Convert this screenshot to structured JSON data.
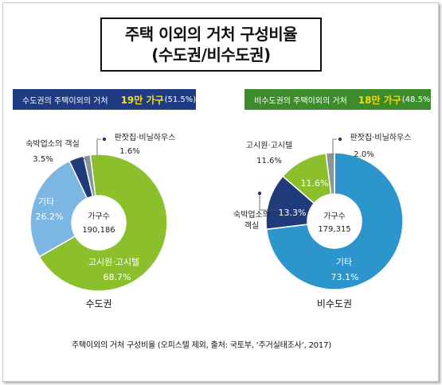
{
  "title": {
    "line1": "주택 이외의 거처 구성비율",
    "line2": "(수도권/비수도권)"
  },
  "banners": {
    "left": {
      "label": "수도권의 주택이외의 거처",
      "count": "19만 가구",
      "pct": "(51.5%)"
    },
    "right": {
      "label": "비수도권의 주택이외의 거처",
      "count": "18만 가구",
      "pct": "(48.5%)"
    }
  },
  "footer": "주택이외의 거처 구성비율 (오피스텔 제외, 출처: 국토부, ‘주거실태조사’, 2017)",
  "colors": {
    "green": "#8cbf2c",
    "light_blue": "#7cb6e3",
    "dark_navy": "#1f3b7a",
    "gray": "#8a939c",
    "teal_blue": "#2b95cc"
  },
  "chart_data": [
    {
      "type": "pie",
      "title": "수도권",
      "center_label": "가구수",
      "center_value": "190,186",
      "slices": [
        {
          "label": "고시원·고시텔",
          "value": 68.7,
          "value_label": "68.7%",
          "color": "#8cbf2c"
        },
        {
          "label": "기타",
          "value": 26.2,
          "value_label": "26.2%",
          "color": "#7cb6e3"
        },
        {
          "label": "숙박업소의 객실",
          "value": 3.5,
          "value_label": "3.5%",
          "color": "#1f3b7a"
        },
        {
          "label": "판잣집·비닐하우스",
          "value": 1.6,
          "value_label": "1.6%",
          "color": "#8a939c"
        }
      ]
    },
    {
      "type": "pie",
      "title": "비수도권",
      "center_label": "가구수",
      "center_value": "179,315",
      "slices": [
        {
          "label": "기타",
          "value": 73.1,
          "value_label": "73.1%",
          "color": "#2b95cc"
        },
        {
          "label": "숙박업소의 객실",
          "value": 13.3,
          "value_label": "13.3%",
          "color": "#1f3b7a"
        },
        {
          "label": "고시원·고시텔",
          "value": 11.6,
          "value_label": "11.6%",
          "color": "#8cbf2c"
        },
        {
          "label": "판잣집·비닐하우스",
          "value": 2.0,
          "value_label": "2.0%",
          "color": "#8a939c"
        }
      ]
    }
  ]
}
